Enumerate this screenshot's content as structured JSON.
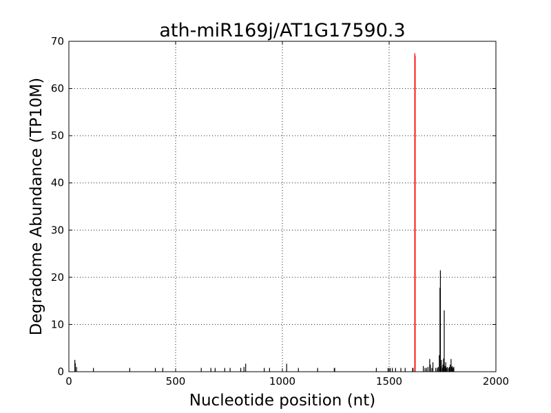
{
  "chart_data": {
    "type": "bar",
    "title": "ath-miR169j/AT1G17590.3",
    "xlabel": "Nucleotide position (nt)",
    "ylabel": "Degradome Abundance (TP10M)",
    "xlim": [
      0,
      2000
    ],
    "ylim": [
      0,
      70
    ],
    "xticks": [
      0,
      500,
      1000,
      1500,
      2000
    ],
    "yticks": [
      0,
      10,
      20,
      30,
      40,
      50,
      60,
      70
    ],
    "grid": true,
    "series": [
      {
        "color": "#000000",
        "x": [
          28,
          30,
          36,
          115,
          285,
          405,
          440,
          620,
          665,
          685,
          730,
          755,
          805,
          820,
          828,
          915,
          940,
          1020,
          1075,
          1165,
          1243,
          1245,
          1440,
          1495,
          1505,
          1515,
          1530,
          1555,
          1575,
          1610,
          1612,
          1660,
          1668,
          1675,
          1682,
          1690,
          1693,
          1700,
          1705,
          1718,
          1725,
          1730,
          1735,
          1738,
          1740,
          1742,
          1745,
          1750,
          1752,
          1755,
          1758,
          1762,
          1765,
          1768,
          1772,
          1778,
          1782,
          1786,
          1790,
          1793,
          1796,
          1800,
          1803
        ],
        "values": [
          2.5,
          1.8,
          1.0,
          0.8,
          0.8,
          0.8,
          0.8,
          0.8,
          0.8,
          0.8,
          0.8,
          0.8,
          0.8,
          1.0,
          1.7,
          0.8,
          0.8,
          1.7,
          0.8,
          0.8,
          0.8,
          0.8,
          0.8,
          0.8,
          0.8,
          0.8,
          0.8,
          0.8,
          0.8,
          0.8,
          0.8,
          1.2,
          0.8,
          0.8,
          1.0,
          2.7,
          1.5,
          0.8,
          2.0,
          0.8,
          0.8,
          1.0,
          3.5,
          17.8,
          21.5,
          1.2,
          2.5,
          0.8,
          1.5,
          2.8,
          13.0,
          1.2,
          2.0,
          0.8,
          1.0,
          0.8,
          1.0,
          1.5,
          2.7,
          1.0,
          1.2,
          0.8,
          1.0
        ]
      },
      {
        "color": "#ff0000",
        "x": [
          1620,
          1622
        ],
        "values": [
          67.5,
          67.0
        ]
      }
    ]
  }
}
